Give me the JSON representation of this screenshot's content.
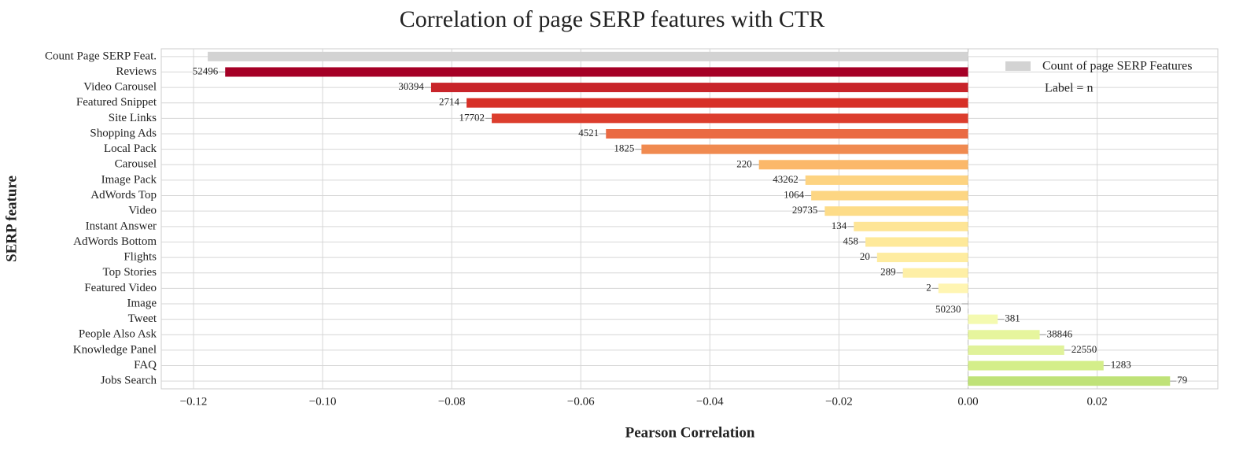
{
  "chart_data": {
    "type": "barh",
    "title": "Correlation of page SERP features with CTR",
    "xlabel": "Pearson Correlation",
    "ylabel": "SERP feature",
    "categories": [
      "Count Page SERP Feat.",
      "Reviews",
      "Video Carousel",
      "Featured Snippet",
      "Site Links",
      "Shopping Ads",
      "Local Pack",
      "Carousel",
      "Image Pack",
      "AdWords Top",
      "Video",
      "Instant Answer",
      "AdWords Bottom",
      "Flights",
      "Top Stories",
      "Featured Video",
      "Image",
      "Tweet",
      "People Also Ask",
      "Knowledge Panel",
      "FAQ",
      "Jobs Search"
    ],
    "values": [
      -0.1178,
      -0.1151,
      -0.0832,
      -0.0777,
      -0.0738,
      -0.0561,
      -0.0506,
      -0.0324,
      -0.0252,
      -0.0243,
      -0.0222,
      -0.0177,
      -0.0159,
      -0.0141,
      -0.0101,
      -0.0046,
      0.0,
      0.0046,
      0.0111,
      0.0149,
      0.021,
      0.0313
    ],
    "labels": [
      null,
      52496,
      30394,
      2714,
      17702,
      4521,
      1825,
      220,
      43262,
      1064,
      29735,
      134,
      458,
      20,
      289,
      2,
      50230,
      381,
      38846,
      22550,
      1283,
      79
    ],
    "colors": [
      "#d3d3d3",
      "#a50026",
      "#c8242a",
      "#d73027",
      "#dc3d2d",
      "#ea6a43",
      "#f08a50",
      "#fbb86a",
      "#fdd381",
      "#fdd683",
      "#fddc88",
      "#fee596",
      "#fee99a",
      "#feeca0",
      "#feefa6",
      "#fff5b2",
      "#fff8b8",
      "#f4fab0",
      "#e6f59d",
      "#e0f29a",
      "#d4ee8a",
      "#bfe278"
    ],
    "xlim": [
      -0.125,
      0.0387
    ],
    "xticks": [
      {
        "value": -0.12,
        "label": "−0.12"
      },
      {
        "value": -0.1,
        "label": "−0.10"
      },
      {
        "value": -0.08,
        "label": "−0.08"
      },
      {
        "value": -0.06,
        "label": "−0.06"
      },
      {
        "value": -0.04,
        "label": "−0.04"
      },
      {
        "value": -0.02,
        "label": "−0.02"
      },
      {
        "value": 0,
        "label": "0.00"
      },
      {
        "value": 0.02,
        "label": "0.02"
      }
    ],
    "grid": true,
    "legend": {
      "label": "Count of page SERP Features",
      "color": "#d3d3d3",
      "note": "Label = n"
    },
    "legend_position": "upper right"
  }
}
